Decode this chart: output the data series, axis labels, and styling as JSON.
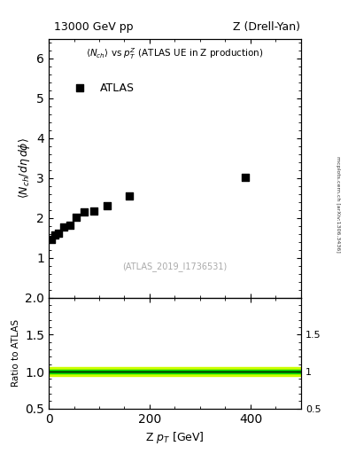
{
  "title_left": "13000 GeV pp",
  "title_right": "Z (Drell-Yan)",
  "legend_label": "ATLAS",
  "watermark": "(ATLAS_2019_I1736531)",
  "side_label": "mcplots.cern.ch [arXiv:1306.3436]",
  "data_x": [
    5,
    12,
    20,
    30,
    42,
    55,
    70,
    90,
    115,
    160,
    390
  ],
  "data_y": [
    1.47,
    1.57,
    1.62,
    1.78,
    1.82,
    2.01,
    2.15,
    2.18,
    2.3,
    2.55,
    3.02
  ],
  "xlim": [
    0,
    500
  ],
  "ylim_main": [
    0,
    6.5
  ],
  "ylim_ratio": [
    0.5,
    2.0
  ],
  "ratio_ylabel": "Ratio to ATLAS",
  "ratio_line": 1.0,
  "band_inner_color": "#00cc00",
  "band_outer_color": "#ccff00",
  "band_inner_half": 0.02,
  "band_outer_half": 0.06,
  "marker_color": "black",
  "marker_style": "s",
  "marker_size": 5,
  "yticks_main": [
    1,
    2,
    3,
    4,
    5,
    6
  ],
  "xticks": [
    0,
    200,
    400
  ],
  "yticks_ratio": [
    0.5,
    1.0,
    1.5,
    2.0
  ],
  "xlabel_fontsize": 9,
  "ylabel_fontsize": 9,
  "title_fontsize": 9,
  "annotation_fontsize": 7.5
}
